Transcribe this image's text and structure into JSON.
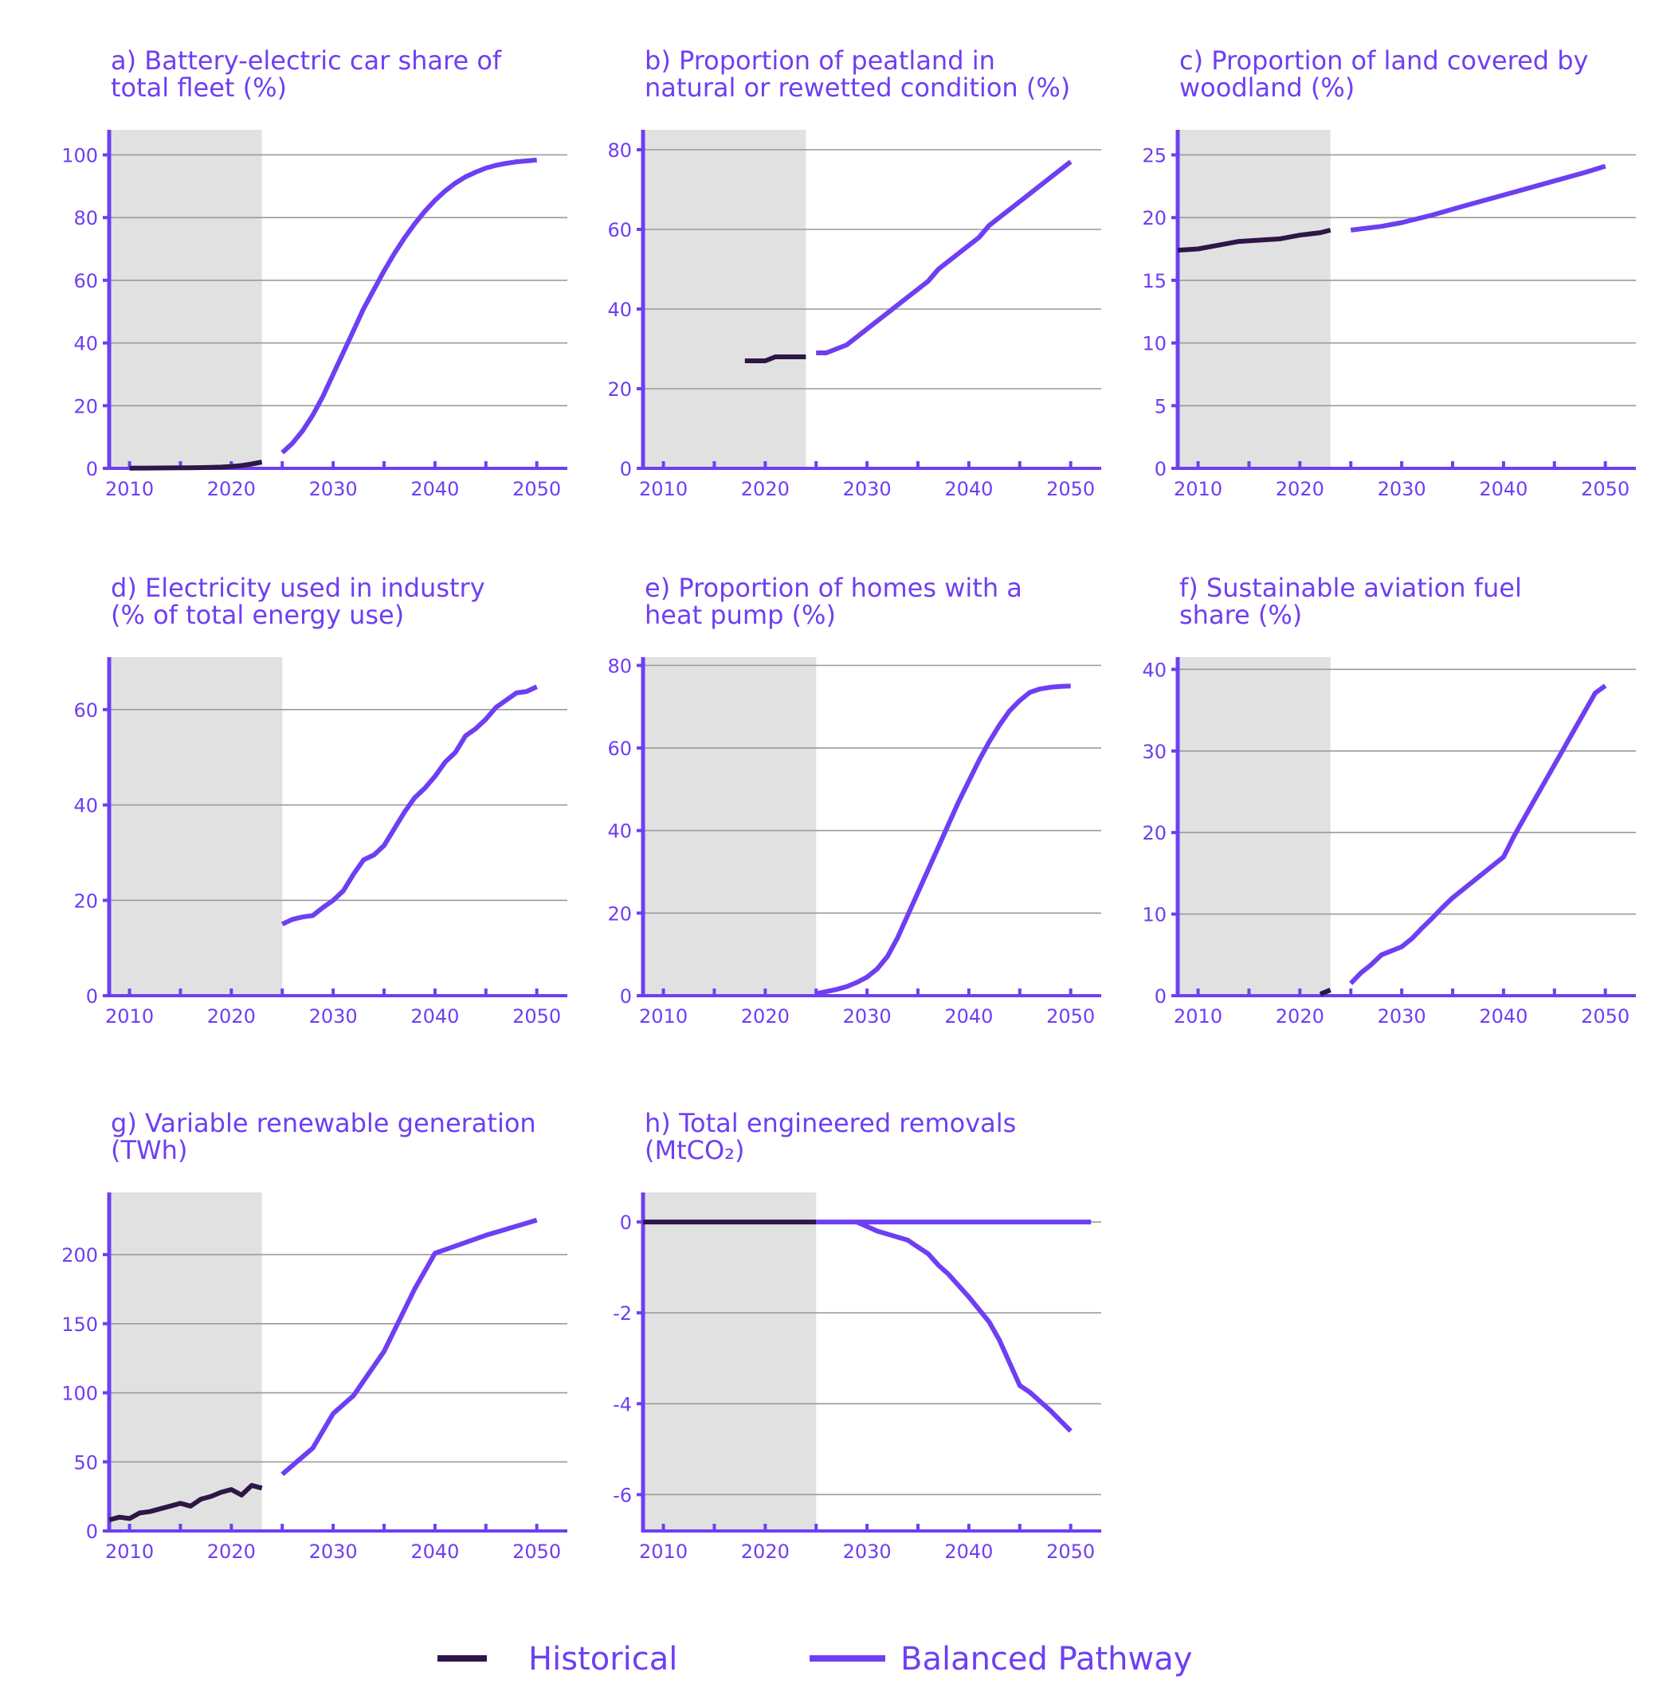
{
  "colors": {
    "accent": "#6e3ff2",
    "historical": "#2e1648",
    "balanced": "#6e3ff2",
    "shade": "#e1e1e1",
    "grid": "#9a9a9a"
  },
  "legend": {
    "historical": "Historical",
    "balanced": "Balanced Pathway"
  },
  "chart_data": [
    {
      "type": "line",
      "title": [
        "a) Battery-electric car share of",
        "total fleet (%)"
      ],
      "xlim": [
        2008,
        2053
      ],
      "ylim": [
        0,
        108
      ],
      "xticks": [
        2010,
        2020,
        2030,
        2040,
        2050
      ],
      "yticks": [
        0,
        20,
        40,
        60,
        80,
        100
      ],
      "shade_until": 2023,
      "series": [
        {
          "name": "Historical",
          "x": [
            2010,
            2012,
            2014,
            2016,
            2018,
            2019,
            2020,
            2021,
            2022,
            2023
          ],
          "y": [
            0.05,
            0.1,
            0.15,
            0.2,
            0.3,
            0.4,
            0.6,
            0.9,
            1.4,
            2.0
          ]
        },
        {
          "name": "Balanced Pathway",
          "x": [
            2025,
            2026,
            2027,
            2028,
            2029,
            2030,
            2031,
            2032,
            2033,
            2034,
            2035,
            2036,
            2037,
            2038,
            2039,
            2040,
            2041,
            2042,
            2043,
            2044,
            2045,
            2046,
            2047,
            2048,
            2049,
            2050
          ],
          "y": [
            5,
            8,
            12,
            17,
            23,
            30,
            37,
            44,
            51,
            57,
            63,
            68.5,
            73.5,
            78,
            82,
            85.5,
            88.5,
            91,
            93,
            94.5,
            95.8,
            96.7,
            97.3,
            97.8,
            98.1,
            98.4
          ]
        }
      ]
    },
    {
      "type": "line",
      "title": [
        "b) Proportion of peatland in",
        "natural or rewetted condition (%)"
      ],
      "xlim": [
        2008,
        2053
      ],
      "ylim": [
        0,
        85
      ],
      "xticks": [
        2010,
        2020,
        2030,
        2040,
        2050
      ],
      "yticks": [
        0,
        20,
        40,
        60,
        80
      ],
      "shade_until": 2024,
      "series": [
        {
          "name": "Historical",
          "x": [
            2018,
            2020,
            2021,
            2024
          ],
          "y": [
            27,
            27,
            28,
            28
          ]
        },
        {
          "name": "Balanced Pathway",
          "x": [
            2025,
            2026,
            2028,
            2030,
            2032,
            2034,
            2036,
            2037,
            2040,
            2041,
            2042,
            2044,
            2046,
            2048,
            2050
          ],
          "y": [
            29,
            29,
            31,
            35,
            39,
            43,
            47,
            50,
            56,
            58,
            61,
            65,
            69,
            73,
            77
          ]
        }
      ]
    },
    {
      "type": "line",
      "title": [
        "c) Proportion of land covered by",
        "woodland (%)"
      ],
      "xlim": [
        2008,
        2053
      ],
      "ylim": [
        0,
        27
      ],
      "xticks": [
        2010,
        2020,
        2030,
        2040,
        2050
      ],
      "yticks": [
        0,
        5,
        10,
        15,
        20,
        25
      ],
      "shade_until": 2023,
      "series": [
        {
          "name": "Historical",
          "x": [
            2008,
            2010,
            2012,
            2014,
            2016,
            2018,
            2020,
            2022,
            2023
          ],
          "y": [
            17.4,
            17.5,
            17.8,
            18.1,
            18.2,
            18.3,
            18.6,
            18.8,
            19.0
          ]
        },
        {
          "name": "Balanced Pathway",
          "x": [
            2025,
            2028,
            2030,
            2033,
            2036,
            2040,
            2044,
            2048,
            2050
          ],
          "y": [
            19.0,
            19.3,
            19.6,
            20.2,
            20.9,
            21.8,
            22.7,
            23.6,
            24.1
          ]
        }
      ]
    },
    {
      "type": "line",
      "title": [
        "d) Electricity used in industry",
        "(% of total energy use)"
      ],
      "xlim": [
        2008,
        2053
      ],
      "ylim": [
        0,
        71
      ],
      "xticks": [
        2010,
        2020,
        2030,
        2040,
        2050
      ],
      "yticks": [
        0,
        20,
        40,
        60
      ],
      "shade_until": 2025,
      "series": [
        {
          "name": "Balanced Pathway",
          "x": [
            2025,
            2026,
            2027,
            2028,
            2029,
            2030,
            2031,
            2032,
            2033,
            2034,
            2035,
            2036,
            2037,
            2038,
            2039,
            2040,
            2041,
            2042,
            2043,
            2044,
            2045,
            2046,
            2047,
            2048,
            2049,
            2050
          ],
          "y": [
            15,
            16,
            16.5,
            16.8,
            18.5,
            20,
            22,
            25.5,
            28.5,
            29.5,
            31.5,
            35,
            38.5,
            41.5,
            43.5,
            46,
            49,
            51,
            54.5,
            56,
            58,
            60.5,
            62,
            63.5,
            63.8,
            64.8
          ]
        }
      ]
    },
    {
      "type": "line",
      "title": [
        "e) Proportion of homes with a",
        "heat pump (%)"
      ],
      "xlim": [
        2008,
        2053
      ],
      "ylim": [
        0,
        82
      ],
      "xticks": [
        2010,
        2020,
        2030,
        2040,
        2050
      ],
      "yticks": [
        0,
        20,
        40,
        60,
        80
      ],
      "shade_until": 2025,
      "series": [
        {
          "name": "Balanced Pathway",
          "x": [
            2025,
            2026,
            2027,
            2028,
            2029,
            2030,
            2031,
            2032,
            2033,
            2034,
            2035,
            2036,
            2037,
            2038,
            2039,
            2040,
            2041,
            2042,
            2043,
            2044,
            2045,
            2046,
            2047,
            2048,
            2049,
            2050
          ],
          "y": [
            0.5,
            1,
            1.5,
            2.2,
            3.2,
            4.5,
            6.5,
            9.5,
            14,
            19.5,
            25,
            30.5,
            36,
            41.5,
            47,
            52,
            57,
            61.5,
            65.5,
            69,
            71.5,
            73.5,
            74.3,
            74.7,
            74.9,
            75
          ]
        }
      ]
    },
    {
      "type": "line",
      "title": [
        "f) Sustainable aviation fuel",
        "share (%)"
      ],
      "xlim": [
        2008,
        2053
      ],
      "ylim": [
        0,
        41.5
      ],
      "xticks": [
        2010,
        2020,
        2030,
        2040,
        2050
      ],
      "yticks": [
        0,
        10,
        20,
        30,
        40
      ],
      "shade_until": 2023,
      "series": [
        {
          "name": "Historical",
          "x": [
            2022,
            2023
          ],
          "y": [
            0.2,
            0.7
          ]
        },
        {
          "name": "Balanced Pathway",
          "x": [
            2025,
            2026,
            2027,
            2028,
            2029,
            2030,
            2031,
            2032,
            2033,
            2034,
            2035,
            2036,
            2037,
            2038,
            2039,
            2040,
            2041,
            2042,
            2043,
            2044,
            2045,
            2046,
            2047,
            2048,
            2049,
            2050
          ],
          "y": [
            1.5,
            2.8,
            3.8,
            5.0,
            5.5,
            6.0,
            7.0,
            8.3,
            9.5,
            10.8,
            12.0,
            13.0,
            14.0,
            15.0,
            16.0,
            17.0,
            19.5,
            21.7,
            23.9,
            26.1,
            28.3,
            30.5,
            32.7,
            34.9,
            37.1,
            38.0
          ]
        }
      ]
    },
    {
      "type": "line",
      "title": [
        "g) Variable renewable generation",
        "(TWh)"
      ],
      "xlim": [
        2008,
        2053
      ],
      "ylim": [
        0,
        245
      ],
      "xticks": [
        2010,
        2020,
        2030,
        2040,
        2050
      ],
      "yticks": [
        0,
        50,
        100,
        150,
        200
      ],
      "shade_until": 2023,
      "series": [
        {
          "name": "Historical",
          "x": [
            2008,
            2009,
            2010,
            2011,
            2012,
            2013,
            2014,
            2015,
            2016,
            2017,
            2018,
            2019,
            2020,
            2021,
            2022,
            2023
          ],
          "y": [
            8,
            10,
            9,
            13,
            14,
            16,
            18,
            20,
            18,
            23,
            25,
            28,
            30,
            26,
            33,
            31
          ]
        },
        {
          "name": "Balanced Pathway",
          "x": [
            2025,
            2028,
            2030,
            2032,
            2035,
            2038,
            2040,
            2045,
            2050
          ],
          "y": [
            41,
            60,
            85,
            98,
            130,
            175,
            201,
            214,
            225
          ]
        }
      ]
    },
    {
      "type": "line",
      "title": [
        "h) Total engineered removals",
        "(MtCO₂)"
      ],
      "xlim": [
        2008,
        2053
      ],
      "ylim": [
        -6.8,
        0.65
      ],
      "xticks": [
        2010,
        2020,
        2030,
        2040,
        2050
      ],
      "yticks": [
        0,
        -2,
        -4,
        -6
      ],
      "shade_until": 2025,
      "series": [
        {
          "name": "Historical",
          "x": [
            2008,
            2025
          ],
          "y": [
            0,
            0
          ]
        },
        {
          "name": "Balanced Pathway",
          "x": [
            2025,
            2029,
            2031,
            2034,
            2035,
            2036,
            2037,
            2038,
            2040,
            2042,
            2043,
            2045,
            2046,
            2047,
            2048,
            2050
          ],
          "y": [
            0,
            0,
            -0.2,
            -0.4,
            -0.55,
            -0.7,
            -0.95,
            -1.15,
            -1.65,
            -2.2,
            -2.6,
            -3.6,
            -3.75,
            -3.95,
            -4.15,
            -4.6
          ]
        },
        {
          "name": "Balanced Pathway",
          "x": [
            2029,
            2052
          ],
          "y": [
            0,
            0
          ]
        }
      ]
    }
  ]
}
